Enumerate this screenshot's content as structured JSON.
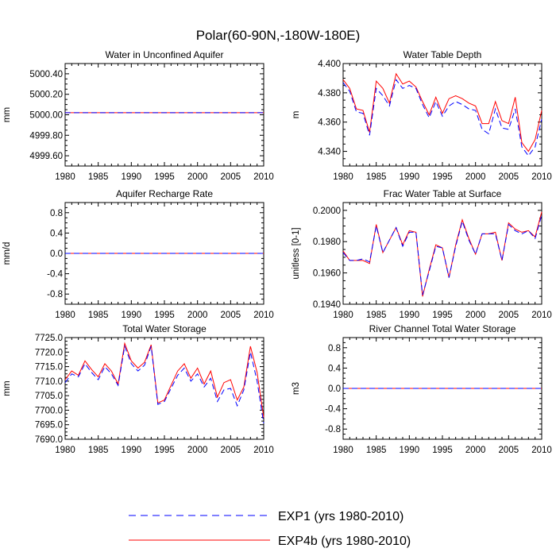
{
  "title": "Polar(60-90N,-180W-180E)",
  "legend": [
    {
      "label": "EXP1 (yrs 1980-2010)",
      "color": "#0000ff",
      "dash": "dashed"
    },
    {
      "label": "EXP4b (yrs 1980-2010)",
      "color": "#ff0000",
      "dash": "solid"
    }
  ],
  "chart_data": [
    {
      "type": "line",
      "title": "Water in Unconfined Aquifer",
      "ylabel": "mm",
      "xlim": [
        1980,
        2010
      ],
      "ylim": [
        4999.5,
        5000.5
      ],
      "xticks": [
        1980,
        1985,
        1990,
        1995,
        2000,
        2005,
        2010
      ],
      "yticks": [
        4999.6,
        4999.8,
        5000.0,
        5000.2,
        5000.4
      ],
      "ytick_labels": [
        "4999.60",
        "4999.80",
        "5000.00",
        "5000.20",
        "5000.40"
      ],
      "x": [
        1980,
        2010
      ],
      "series": [
        {
          "name": "EXP1 (yrs 1980-2010)",
          "color": "#0000ff",
          "dash": "dashed",
          "values": [
            5000.02,
            5000.02
          ]
        },
        {
          "name": "EXP4b (yrs 1980-2010)",
          "color": "#ff0000",
          "dash": "solid",
          "values": [
            5000.02,
            5000.02
          ]
        }
      ]
    },
    {
      "type": "line",
      "title": "Water Table Depth",
      "ylabel": "m",
      "xlim": [
        1980,
        2010
      ],
      "ylim": [
        4.33,
        4.4
      ],
      "xticks": [
        1980,
        1985,
        1990,
        1995,
        2000,
        2005,
        2010
      ],
      "yticks": [
        4.34,
        4.36,
        4.38,
        4.4
      ],
      "ytick_labels": [
        "4.340",
        "4.360",
        "4.380",
        "4.400"
      ],
      "x": [
        1980,
        1981,
        1982,
        1983,
        1984,
        1985,
        1986,
        1987,
        1988,
        1989,
        1990,
        1991,
        1992,
        1993,
        1994,
        1995,
        1996,
        1997,
        1998,
        1999,
        2000,
        2001,
        2002,
        2003,
        2004,
        2005,
        2006,
        2007,
        2008,
        2009,
        2010
      ],
      "series": [
        {
          "name": "EXP1 (yrs 1980-2010)",
          "color": "#0000ff",
          "dash": "dashed",
          "values": [
            4.387,
            4.381,
            4.367,
            4.366,
            4.351,
            4.383,
            4.378,
            4.371,
            4.389,
            4.383,
            4.385,
            4.383,
            4.372,
            4.363,
            4.374,
            4.364,
            4.371,
            4.374,
            4.372,
            4.369,
            4.368,
            4.355,
            4.352,
            4.369,
            4.356,
            4.355,
            4.369,
            4.343,
            4.337,
            4.343,
            4.362
          ]
        },
        {
          "name": "EXP4b (yrs 1980-2010)",
          "color": "#ff0000",
          "dash": "solid",
          "values": [
            4.389,
            4.383,
            4.369,
            4.368,
            4.353,
            4.388,
            4.383,
            4.373,
            4.393,
            4.386,
            4.388,
            4.384,
            4.374,
            4.365,
            4.377,
            4.366,
            4.376,
            4.378,
            4.376,
            4.373,
            4.371,
            4.359,
            4.359,
            4.374,
            4.361,
            4.359,
            4.377,
            4.346,
            4.34,
            4.348,
            4.368
          ]
        }
      ]
    },
    {
      "type": "line",
      "title": "Aquifer Recharge Rate",
      "ylabel": "mm/d",
      "xlim": [
        1980,
        2010
      ],
      "ylim": [
        -1.0,
        1.0
      ],
      "xticks": [
        1980,
        1985,
        1990,
        1995,
        2000,
        2005,
        2010
      ],
      "yticks": [
        -0.8,
        -0.4,
        0.0,
        0.4,
        0.8
      ],
      "ytick_labels": [
        "-0.8",
        "-0.4",
        "0.0",
        "0.4",
        "0.8"
      ],
      "x": [
        1980,
        2010
      ],
      "series": [
        {
          "name": "EXP1 (yrs 1980-2010)",
          "color": "#0000ff",
          "dash": "dashed",
          "values": [
            0.0,
            0.0
          ]
        },
        {
          "name": "EXP4b (yrs 1980-2010)",
          "color": "#ff0000",
          "dash": "solid",
          "values": [
            0.0,
            0.0
          ]
        }
      ]
    },
    {
      "type": "line",
      "title": "Frac Water Table at Surface",
      "ylabel": "unitless [0-1]",
      "xlim": [
        1980,
        2010
      ],
      "ylim": [
        0.194,
        0.2005
      ],
      "xticks": [
        1980,
        1985,
        1990,
        1995,
        2000,
        2005,
        2010
      ],
      "yticks": [
        0.194,
        0.196,
        0.198,
        0.2
      ],
      "ytick_labels": [
        "0.1940",
        "0.1960",
        "0.1980",
        "0.2000"
      ],
      "x": [
        1980,
        1981,
        1982,
        1983,
        1984,
        1985,
        1986,
        1987,
        1988,
        1989,
        1990,
        1991,
        1992,
        1993,
        1994,
        1995,
        1996,
        1997,
        1998,
        1999,
        2000,
        2001,
        2002,
        2003,
        2004,
        2005,
        2006,
        2007,
        2008,
        2009,
        2010
      ],
      "series": [
        {
          "name": "EXP1 (yrs 1980-2010)",
          "color": "#0000ff",
          "dash": "dashed",
          "values": [
            0.1973,
            0.1968,
            0.1968,
            0.1969,
            0.1967,
            0.199,
            0.1973,
            0.1981,
            0.1989,
            0.1977,
            0.1986,
            0.1986,
            0.1946,
            0.1961,
            0.1977,
            0.1976,
            0.1957,
            0.1977,
            0.1993,
            0.1981,
            0.1972,
            0.1985,
            0.1985,
            0.1985,
            0.1968,
            0.1991,
            0.1987,
            0.1985,
            0.1987,
            0.1982,
            0.1997
          ]
        },
        {
          "name": "EXP4b (yrs 1980-2010)",
          "color": "#ff0000",
          "dash": "solid",
          "values": [
            0.1974,
            0.1968,
            0.1968,
            0.1968,
            0.1966,
            0.1991,
            0.1973,
            0.1981,
            0.1989,
            0.1978,
            0.1987,
            0.1986,
            0.1945,
            0.1962,
            0.1978,
            0.1976,
            0.1957,
            0.1978,
            0.1994,
            0.1982,
            0.1972,
            0.1985,
            0.1985,
            0.1986,
            0.1968,
            0.1992,
            0.1988,
            0.1986,
            0.1987,
            0.1983,
            0.1999
          ]
        }
      ]
    },
    {
      "type": "line",
      "title": "Total Water Storage",
      "ylabel": "mm",
      "xlim": [
        1980,
        2010
      ],
      "ylim": [
        7690.0,
        7725.0
      ],
      "xticks": [
        1980,
        1985,
        1990,
        1995,
        2000,
        2005,
        2010
      ],
      "yticks": [
        7690,
        7695,
        7700,
        7705,
        7710,
        7715,
        7720,
        7725
      ],
      "ytick_labels": [
        "7690.0",
        "7695.0",
        "7700.0",
        "7705.0",
        "7710.0",
        "7715.0",
        "7720.0",
        "7725.0"
      ],
      "x": [
        1980,
        1981,
        1982,
        1983,
        1984,
        1985,
        1986,
        1987,
        1988,
        1989,
        1990,
        1991,
        1992,
        1993,
        1994,
        1995,
        1996,
        1997,
        1998,
        1999,
        2000,
        2001,
        2002,
        2003,
        2004,
        2005,
        2006,
        2007,
        2008,
        2009,
        2010
      ],
      "series": [
        {
          "name": "EXP1 (yrs 1980-2010)",
          "color": "#0000ff",
          "dash": "dashed",
          "values": [
            7709.5,
            7712.5,
            7711.5,
            7716.0,
            7713.0,
            7710.5,
            7715.0,
            7712.5,
            7708.5,
            7722.0,
            7716.0,
            7713.5,
            7715.5,
            7722.0,
            7702.0,
            7703.0,
            7707.5,
            7712.0,
            7714.5,
            7710.0,
            7712.5,
            7708.0,
            7711.0,
            7703.0,
            7707.0,
            7707.5,
            7701.5,
            7707.0,
            7720.0,
            7710.0,
            7695.5
          ]
        },
        {
          "name": "EXP4b (yrs 1980-2010)",
          "color": "#ff0000",
          "dash": "solid",
          "values": [
            7710.5,
            7713.5,
            7712.0,
            7717.0,
            7714.0,
            7711.5,
            7716.0,
            7713.5,
            7709.0,
            7723.0,
            7717.0,
            7714.5,
            7716.5,
            7722.5,
            7702.5,
            7703.5,
            7708.5,
            7713.5,
            7716.0,
            7711.0,
            7714.5,
            7709.0,
            7713.5,
            7704.5,
            7709.5,
            7710.5,
            7703.5,
            7708.0,
            7722.0,
            7713.0,
            7697.5
          ]
        }
      ]
    },
    {
      "type": "line",
      "title": "River Channel Total Water Storage",
      "ylabel": "m3",
      "xlim": [
        1980,
        2010
      ],
      "ylim": [
        -1.0,
        1.0
      ],
      "xticks": [
        1980,
        1985,
        1990,
        1995,
        2000,
        2005,
        2010
      ],
      "yticks": [
        -0.8,
        -0.4,
        0.0,
        0.4,
        0.8
      ],
      "ytick_labels": [
        "-0.8",
        "-0.4",
        "0.0",
        "0.4",
        "0.8"
      ],
      "x": [
        1980,
        2010
      ],
      "series": [
        {
          "name": "EXP1 (yrs 1980-2010)",
          "color": "#0000ff",
          "dash": "dashed",
          "values": [
            0.0,
            0.0
          ]
        },
        {
          "name": "EXP4b (yrs 1980-2010)",
          "color": "#ff0000",
          "dash": "solid",
          "values": [
            0.0,
            0.0
          ]
        }
      ]
    }
  ]
}
